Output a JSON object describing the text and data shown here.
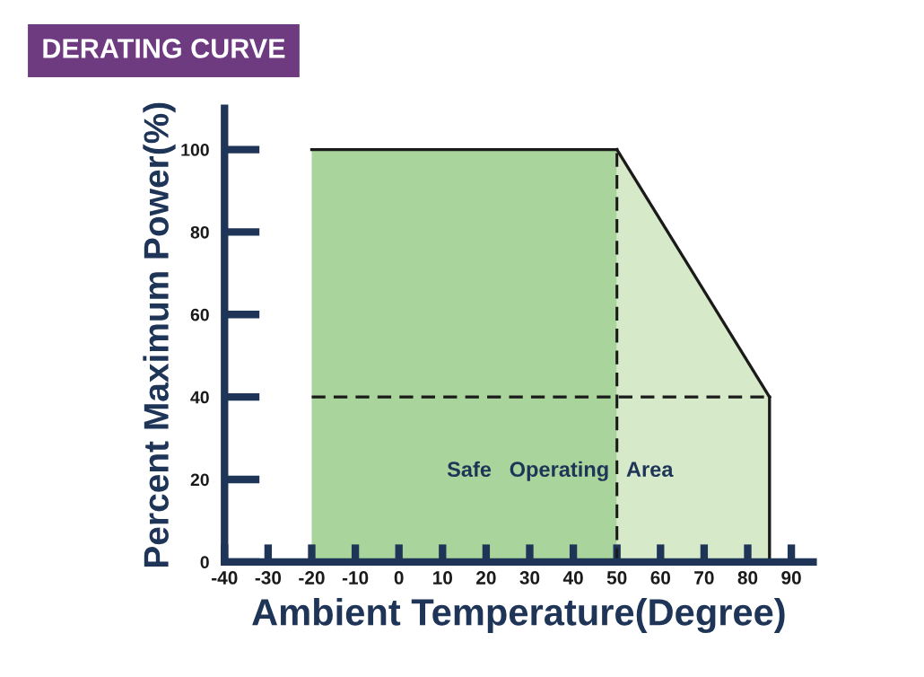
{
  "chart_data": {
    "type": "area",
    "title": "DERATING CURVE",
    "xlabel": "Ambient Temperature(Degree)",
    "ylabel": "Percent Maximum Power(%)",
    "series": [
      {
        "x": [
          -20,
          50
        ],
        "values": [
          100,
          100
        ],
        "color": "#a9d49b"
      },
      {
        "x": [
          50,
          85
        ],
        "values": [
          100,
          40
        ],
        "color": "#d6e9c9"
      }
    ],
    "ref_lines": [
      {
        "axis": "y",
        "value": 40,
        "line_style": "dashed",
        "color": "#1a1a1a"
      },
      {
        "axis": "x",
        "value": 50,
        "line_style": "dashed",
        "color": "#1a1a1a"
      }
    ],
    "annotations": [
      "Safe   Operating   Area"
    ],
    "xlim": [
      -40,
      95
    ],
    "ylim": [
      0,
      110
    ],
    "xticks": [
      -40,
      -30,
      -20,
      -10,
      0,
      10,
      20,
      30,
      40,
      50,
      60,
      70,
      80,
      90
    ],
    "yticks": [
      0,
      20,
      40,
      60,
      80,
      100
    ],
    "grid": false,
    "legend": false
  }
}
